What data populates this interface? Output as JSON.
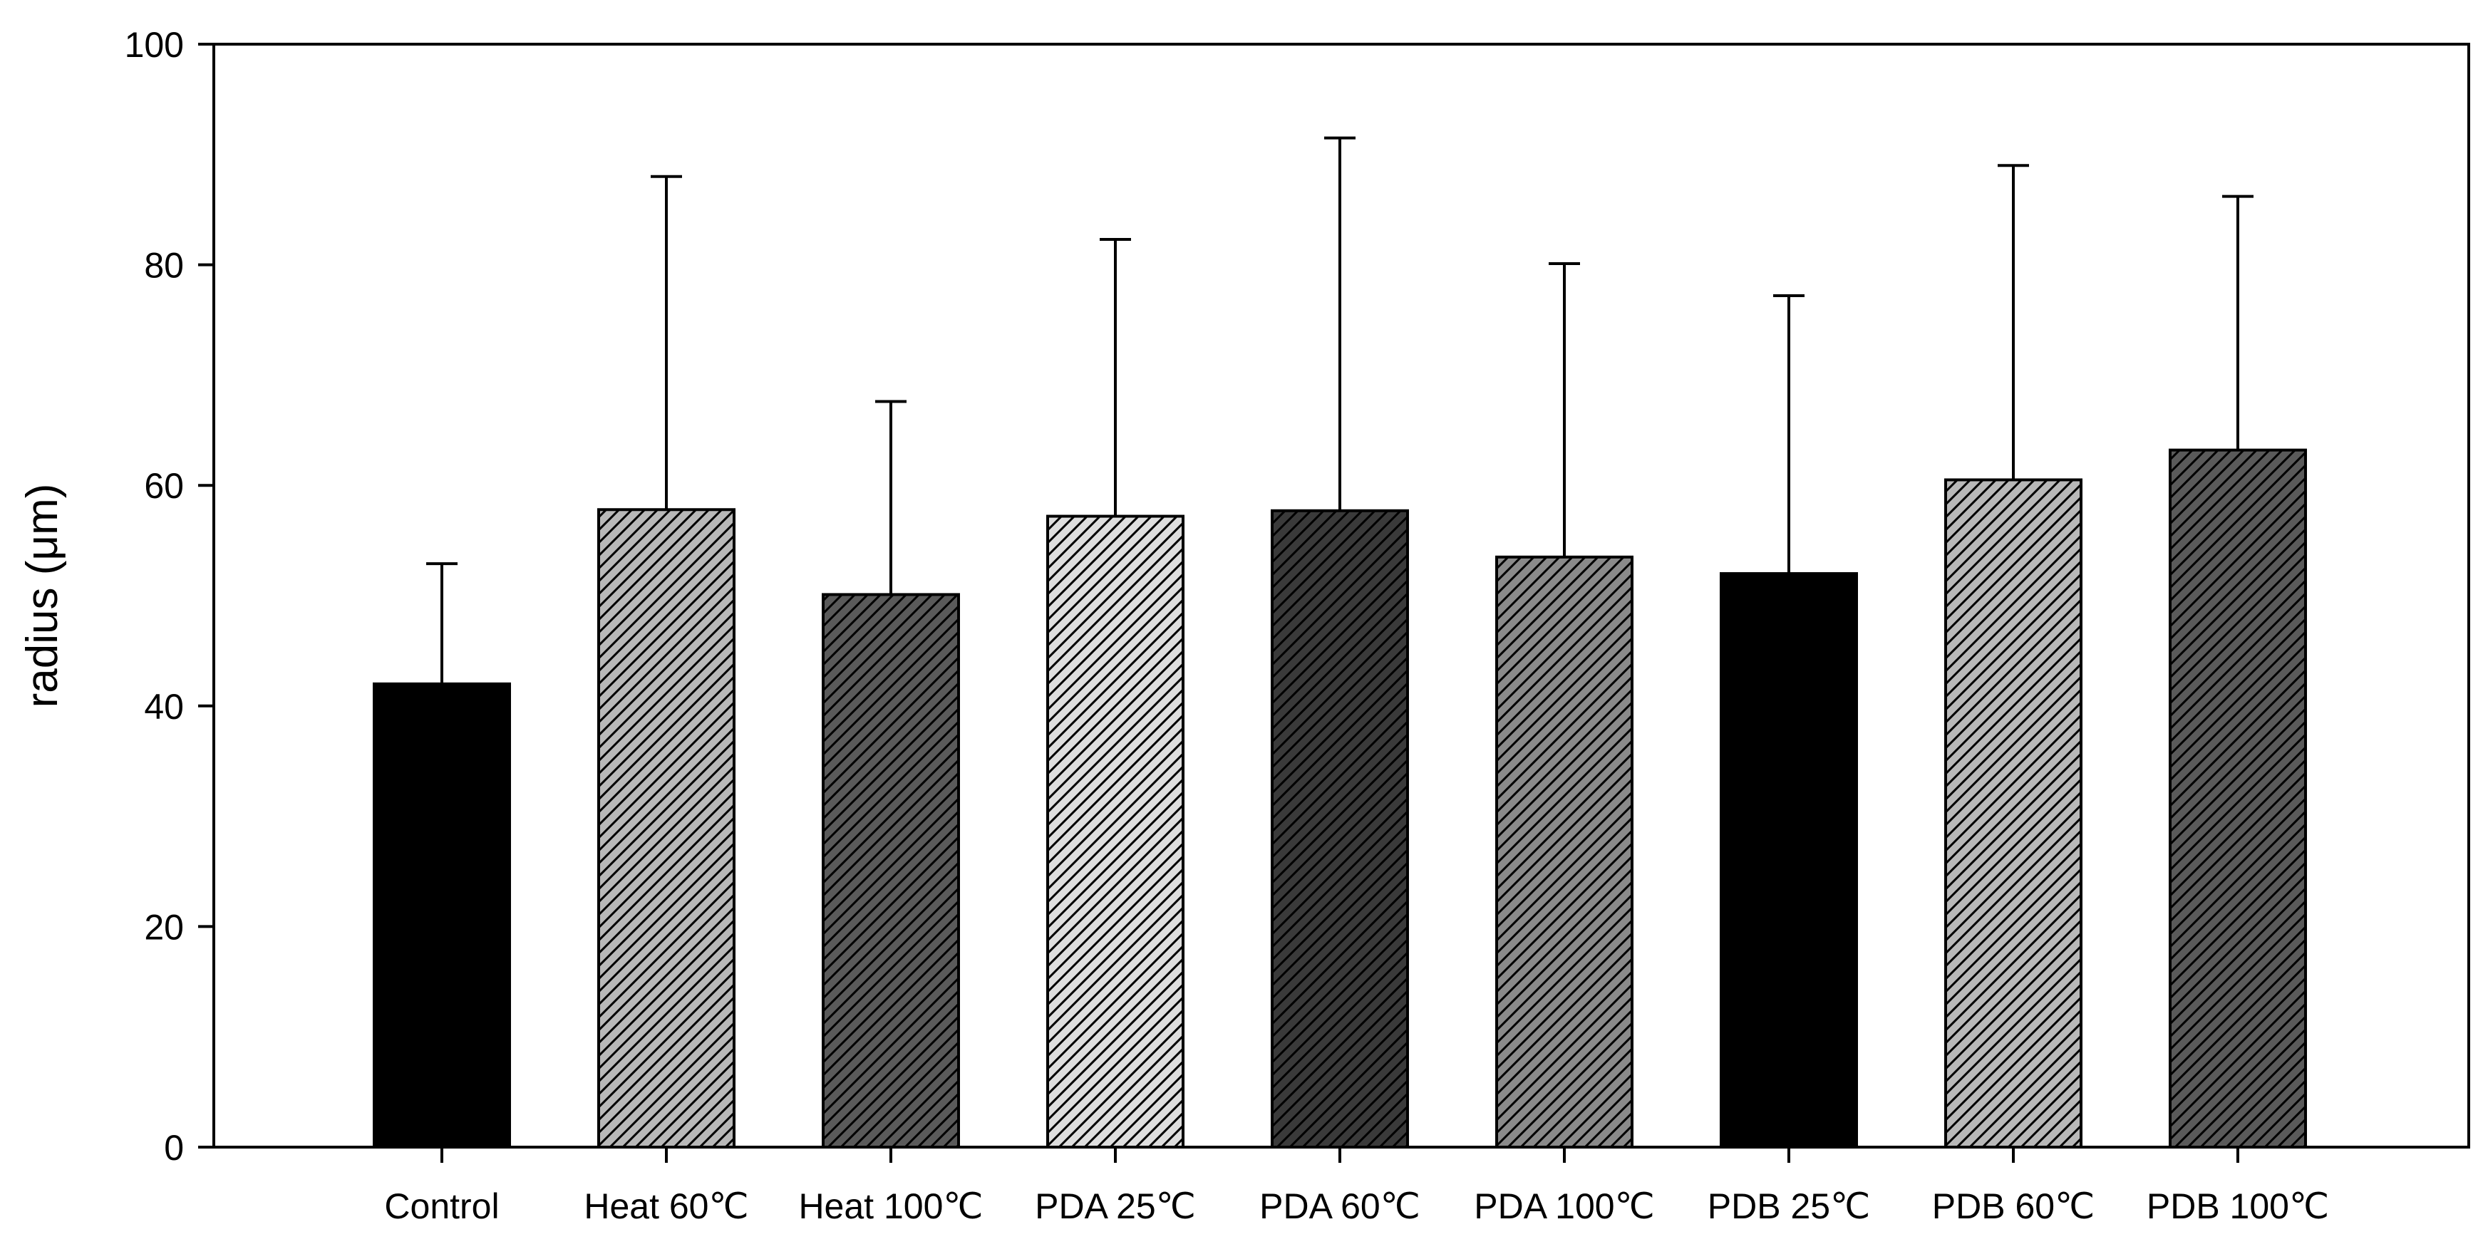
{
  "chart_data": {
    "type": "bar",
    "title": "",
    "xlabel": "",
    "ylabel": "radius (μm)",
    "ylim": [
      0,
      100
    ],
    "yticks": [
      0,
      20,
      40,
      60,
      80,
      100
    ],
    "ytick_labels": [
      "0",
      "20",
      "40",
      "60",
      "80",
      "100"
    ],
    "categories": [
      "Control",
      "Heat 60℃",
      "Heat 100℃",
      "PDA 25℃",
      "PDA 60℃",
      "PDA 100℃",
      "PDB 25℃",
      "PDB 60℃",
      "PDB 100℃"
    ],
    "values": [
      42,
      57.8,
      50.1,
      57.2,
      57.7,
      53.5,
      52,
      60.5,
      63.2
    ],
    "error_upper": [
      52.9,
      88,
      67.6,
      82.3,
      91.5,
      80.1,
      77.2,
      89,
      86.2
    ],
    "bar_styles": [
      {
        "fill": "#000000",
        "pattern": "solid"
      },
      {
        "fill": "#b8b8b8",
        "pattern": "hatch"
      },
      {
        "fill": "#5a5a5a",
        "pattern": "hatch"
      },
      {
        "fill": "#dedede",
        "pattern": "hatch"
      },
      {
        "fill": "#3a3a3a",
        "pattern": "hatch"
      },
      {
        "fill": "#8a8a8a",
        "pattern": "hatch"
      },
      {
        "fill": "#000000",
        "pattern": "solid"
      },
      {
        "fill": "#b8b8b8",
        "pattern": "hatch"
      },
      {
        "fill": "#5a5a5a",
        "pattern": "hatch"
      }
    ],
    "grid": false,
    "legend": "none"
  }
}
